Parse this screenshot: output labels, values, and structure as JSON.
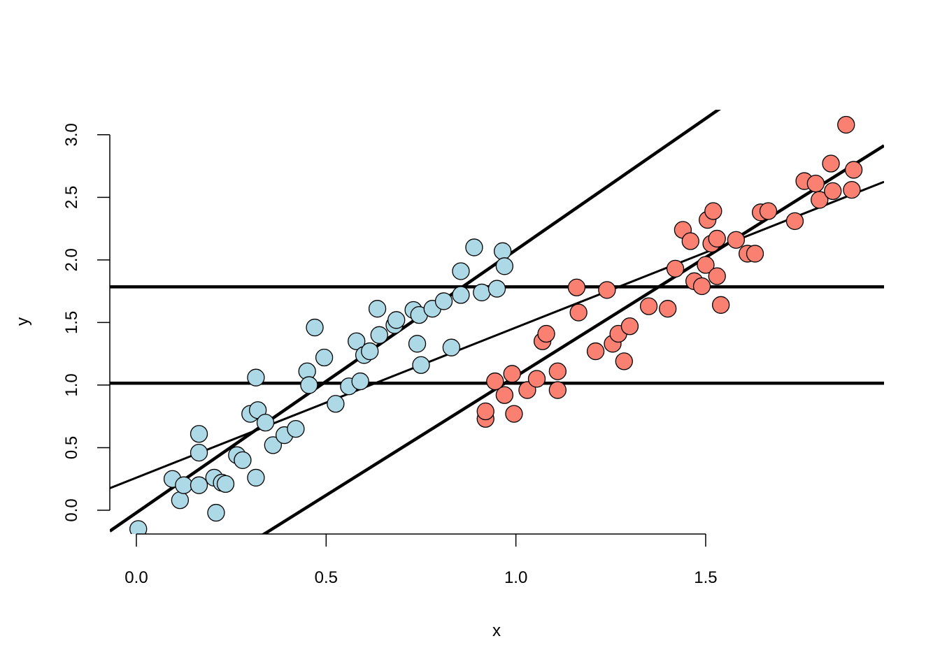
{
  "chart_data": {
    "type": "scatter",
    "title": "",
    "xlabel": "x",
    "ylabel": "y",
    "xlim": [
      -0.07,
      1.97
    ],
    "ylim": [
      -0.19,
      3.2
    ],
    "grid": false,
    "legend": "none",
    "x_ticks": [
      {
        "value": 0.0,
        "label": "0.0"
      },
      {
        "value": 0.5,
        "label": "0.5"
      },
      {
        "value": 1.0,
        "label": "1.0"
      },
      {
        "value": 1.5,
        "label": "1.5"
      }
    ],
    "y_ticks": [
      {
        "value": 0.0,
        "label": "0.0"
      },
      {
        "value": 0.5,
        "label": "0.5"
      },
      {
        "value": 1.0,
        "label": "1.0"
      },
      {
        "value": 1.5,
        "label": "1.5"
      },
      {
        "value": 2.0,
        "label": "2.0"
      },
      {
        "value": 2.5,
        "label": "2.5"
      },
      {
        "value": 3.0,
        "label": "3.0"
      }
    ],
    "series": [
      {
        "color": "#add8e6",
        "points": [
          [
            0.005,
            -0.15
          ],
          [
            0.095,
            0.25
          ],
          [
            0.115,
            0.08
          ],
          [
            0.125,
            0.2
          ],
          [
            0.165,
            0.2
          ],
          [
            0.165,
            0.61
          ],
          [
            0.165,
            0.46
          ],
          [
            0.205,
            0.26
          ],
          [
            0.21,
            -0.02
          ],
          [
            0.225,
            0.22
          ],
          [
            0.235,
            0.21
          ],
          [
            0.265,
            0.44
          ],
          [
            0.28,
            0.4
          ],
          [
            0.3,
            0.77
          ],
          [
            0.315,
            0.26
          ],
          [
            0.315,
            1.06
          ],
          [
            0.32,
            0.8
          ],
          [
            0.34,
            0.7
          ],
          [
            0.36,
            0.52
          ],
          [
            0.39,
            0.6
          ],
          [
            0.42,
            0.65
          ],
          [
            0.45,
            1.11
          ],
          [
            0.455,
            1.0
          ],
          [
            0.47,
            1.46
          ],
          [
            0.495,
            1.22
          ],
          [
            0.525,
            0.85
          ],
          [
            0.56,
            0.99
          ],
          [
            0.58,
            1.35
          ],
          [
            0.59,
            1.03
          ],
          [
            0.6,
            1.24
          ],
          [
            0.615,
            1.27
          ],
          [
            0.635,
            1.61
          ],
          [
            0.64,
            1.4
          ],
          [
            0.68,
            1.48
          ],
          [
            0.685,
            1.52
          ],
          [
            0.73,
            1.6
          ],
          [
            0.74,
            1.33
          ],
          [
            0.745,
            1.56
          ],
          [
            0.75,
            1.16
          ],
          [
            0.78,
            1.61
          ],
          [
            0.81,
            1.67
          ],
          [
            0.83,
            1.3
          ],
          [
            0.855,
            1.91
          ],
          [
            0.855,
            1.72
          ],
          [
            0.89,
            2.1
          ],
          [
            0.91,
            1.74
          ],
          [
            0.95,
            1.77
          ],
          [
            0.965,
            2.07
          ],
          [
            0.97,
            1.95
          ]
        ]
      },
      {
        "color": "#fa8072",
        "points": [
          [
            0.92,
            0.73
          ],
          [
            0.92,
            0.79
          ],
          [
            0.945,
            1.03
          ],
          [
            0.97,
            0.92
          ],
          [
            0.99,
            1.09
          ],
          [
            0.995,
            0.77
          ],
          [
            1.03,
            0.96
          ],
          [
            1.055,
            1.05
          ],
          [
            1.07,
            1.35
          ],
          [
            1.08,
            1.41
          ],
          [
            1.11,
            0.96
          ],
          [
            1.11,
            1.11
          ],
          [
            1.16,
            1.78
          ],
          [
            1.165,
            1.58
          ],
          [
            1.21,
            1.27
          ],
          [
            1.24,
            1.76
          ],
          [
            1.255,
            1.33
          ],
          [
            1.27,
            1.41
          ],
          [
            1.285,
            1.19
          ],
          [
            1.3,
            1.47
          ],
          [
            1.35,
            1.63
          ],
          [
            1.4,
            1.61
          ],
          [
            1.42,
            1.93
          ],
          [
            1.44,
            2.24
          ],
          [
            1.46,
            2.15
          ],
          [
            1.47,
            1.83
          ],
          [
            1.49,
            1.79
          ],
          [
            1.5,
            1.96
          ],
          [
            1.505,
            2.32
          ],
          [
            1.515,
            2.13
          ],
          [
            1.52,
            2.39
          ],
          [
            1.53,
            2.17
          ],
          [
            1.53,
            1.87
          ],
          [
            1.54,
            1.64
          ],
          [
            1.58,
            2.16
          ],
          [
            1.61,
            2.05
          ],
          [
            1.63,
            2.05
          ],
          [
            1.645,
            2.38
          ],
          [
            1.665,
            2.39
          ],
          [
            1.735,
            2.31
          ],
          [
            1.76,
            2.63
          ],
          [
            1.79,
            2.61
          ],
          [
            1.8,
            2.48
          ],
          [
            1.83,
            2.77
          ],
          [
            1.835,
            2.55
          ],
          [
            1.87,
            3.08
          ],
          [
            1.885,
            2.56
          ],
          [
            1.89,
            2.72
          ]
        ]
      }
    ],
    "lines": [
      {
        "type": "horizontal",
        "y": 1.785,
        "width": "thick"
      },
      {
        "type": "horizontal",
        "y": 1.015,
        "width": "thick"
      },
      {
        "type": "abline",
        "intercept": -0.02,
        "slope": 2.1,
        "width": "thick"
      },
      {
        "type": "abline",
        "intercept": -0.83,
        "slope": 1.9,
        "width": "thick"
      },
      {
        "type": "abline",
        "intercept": 0.26,
        "slope": 1.2,
        "width": "thin"
      }
    ]
  }
}
